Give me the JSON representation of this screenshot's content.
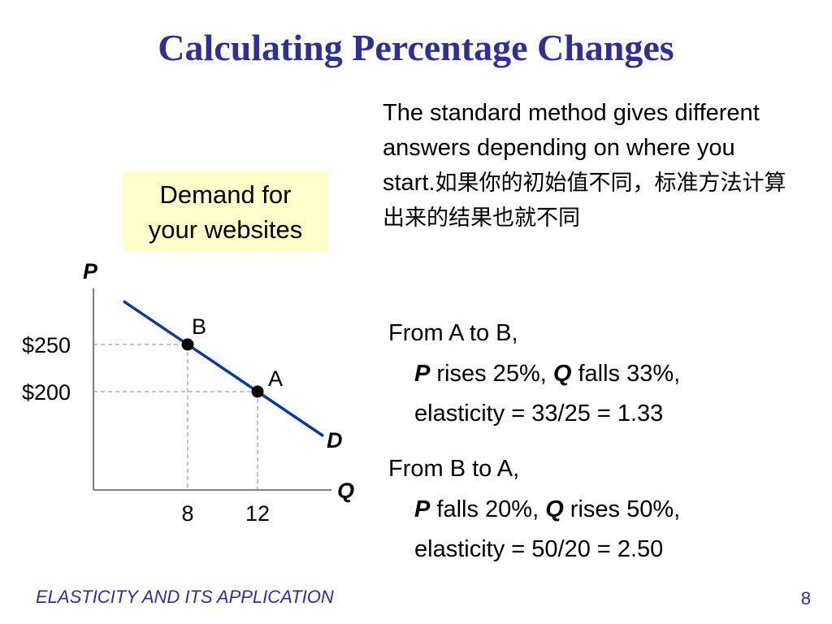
{
  "slide": {
    "title": "Calculating Percentage Changes",
    "intro_en": "The standard method gives different answers depending on where you start.",
    "intro_zh": "如果你的初始值不同，标准方法计算出来的结果也就不同",
    "box_line1": "Demand for",
    "box_line2": "your websites",
    "from_a_to_b": {
      "head": "From A to B,",
      "p": "P",
      "p_text": " rises 25%, ",
      "q": "Q",
      "q_text": " falls 33%,",
      "elasticity": "elasticity = 33/25 = 1.33"
    },
    "from_b_to_a": {
      "head": "From B to A,",
      "p": "P",
      "p_text": " falls 20%, ",
      "q": "Q",
      "q_text": " rises 50%,",
      "elasticity": "elasticity = 50/20 = 2.50"
    },
    "footer": "ELASTICITY AND ITS APPLICATION",
    "page_number": "8"
  },
  "colors": {
    "title": "#2e3192",
    "demand_line": "#0b3a8f",
    "box_fill": "#ffffcc",
    "footer": "#2e3192"
  },
  "chart_data": {
    "type": "line",
    "xlabel": "Q",
    "ylabel": "P",
    "grid": false,
    "x_ticks": [
      "8",
      "12"
    ],
    "y_ticks": [
      "$250",
      "$200"
    ],
    "series": [
      {
        "name": "D",
        "x": [
          8,
          12
        ],
        "y": [
          250,
          200
        ]
      }
    ],
    "points": [
      {
        "label": "B",
        "x": 8,
        "y": 250
      },
      {
        "label": "A",
        "x": 12,
        "y": 200
      }
    ]
  }
}
